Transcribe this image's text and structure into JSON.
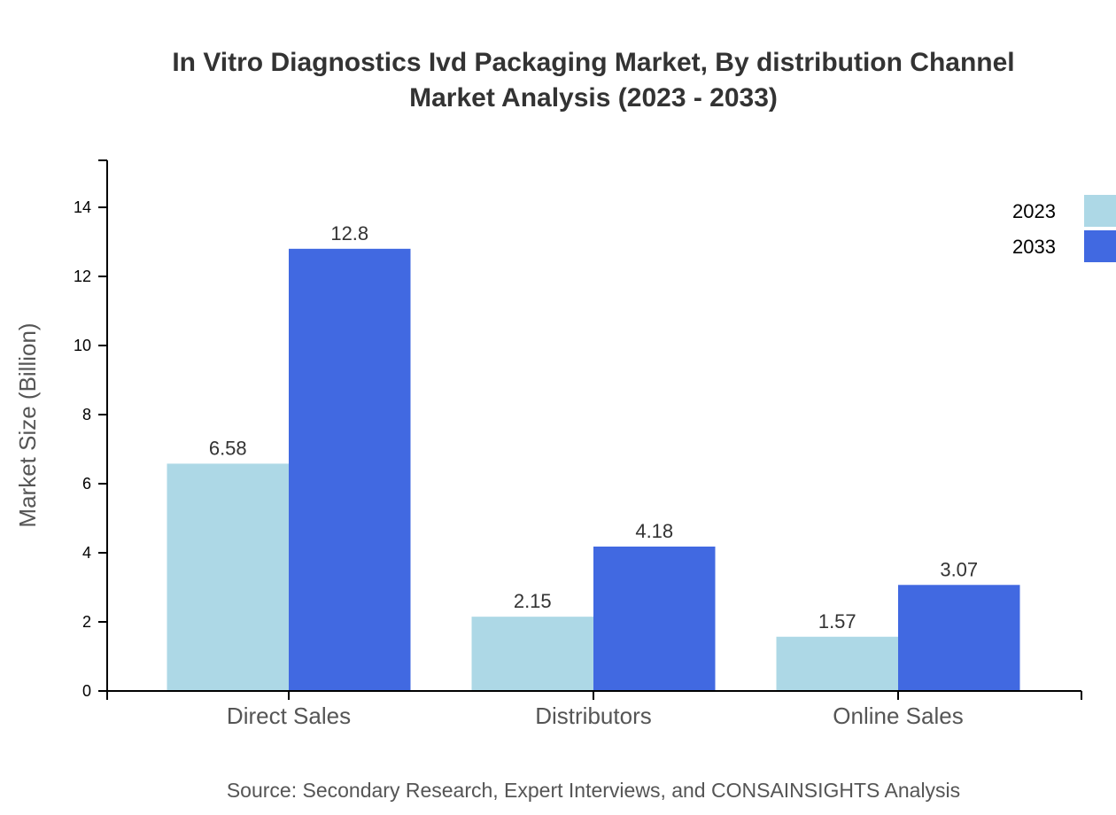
{
  "chart_data": {
    "type": "bar",
    "title": "In Vitro Diagnostics Ivd Packaging Market, By distribution Channel",
    "subtitle": "Market Analysis (2023 - 2033)",
    "xlabel": "",
    "ylabel": "Market Size (Billion)",
    "ylim": [
      0,
      15.36
    ],
    "yticks": [
      0,
      2,
      4,
      6,
      8,
      10,
      12,
      14
    ],
    "categories": [
      "Direct Sales",
      "Distributors",
      "Online Sales"
    ],
    "series": [
      {
        "name": "2023",
        "values": [
          6.58,
          2.15,
          1.57
        ],
        "color": "#add8e6"
      },
      {
        "name": "2033",
        "values": [
          12.8,
          4.18,
          3.07
        ],
        "color": "#4169e1"
      }
    ],
    "legend": "top-right",
    "grid": false,
    "source": "Source: Secondary Research, Expert Interviews, and CONSAINSIGHTS Analysis"
  }
}
